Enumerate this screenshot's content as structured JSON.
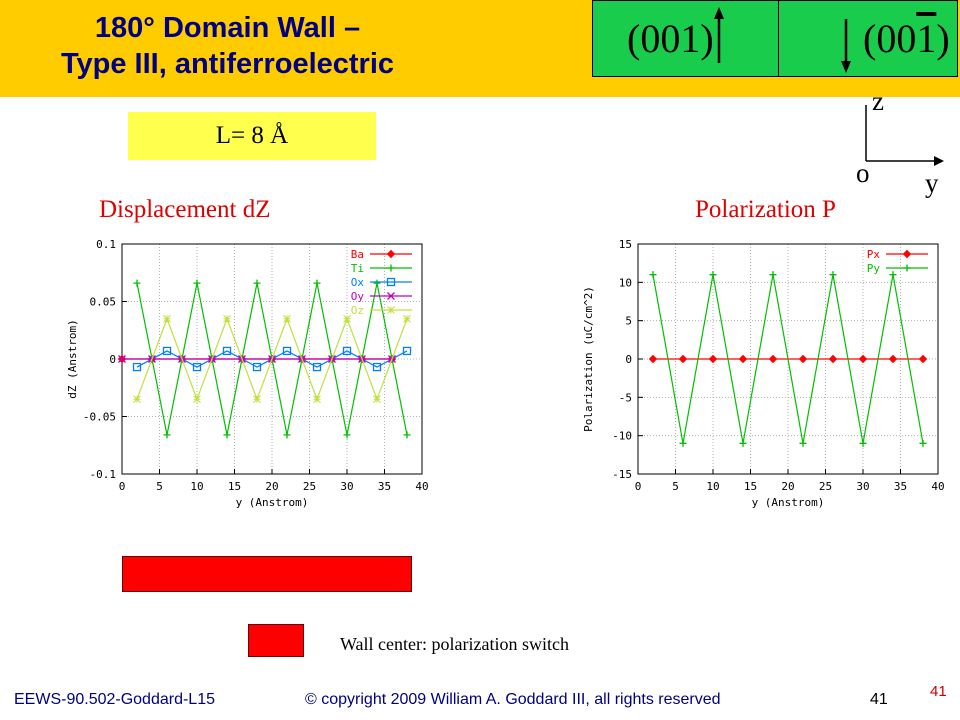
{
  "title": {
    "line1": "180° Domain Wall –",
    "line2": "Type III, antiferroelectric"
  },
  "directions": {
    "left": "(001)",
    "right": "(00",
    "right_bar": "1",
    "right_close": ")"
  },
  "length_label": "L= 8 Å",
  "axes": {
    "z": "z",
    "o": "o",
    "y": "y"
  },
  "chart_titles": {
    "left": "Displacement  dZ",
    "right": "Polarization P"
  },
  "legend": {
    "wall_center": "Wall center: polarization switch"
  },
  "footer": {
    "course": "EEWS-90.502-Goddard-L15",
    "copyright": "© copyright 2009 William A. Goddard III, all rights reserved",
    "page": "41",
    "page_red": "41"
  },
  "colors": {
    "accent": "#ffcc00",
    "title": "#000080",
    "green_box": "#19cc4c",
    "red": "#ff0000"
  },
  "chart_data": [
    {
      "type": "line",
      "title": "Displacement  dZ",
      "xlabel": "y (Anstrom)",
      "ylabel": "dZ (Anstrom)",
      "xlim": [
        0,
        40
      ],
      "ylim": [
        -0.1,
        0.1
      ],
      "xticks": [
        "0",
        "5",
        "10",
        "15",
        "20",
        "25",
        "30",
        "35",
        "40"
      ],
      "yticks": [
        "0.1",
        "0.05",
        "0",
        "-0.05",
        "-0.1"
      ],
      "grid": true,
      "legend_position": "top-right",
      "series": [
        {
          "name": "Ba",
          "color": "#ff0000",
          "marker": "diamond",
          "x": [
            0,
            4,
            8,
            12,
            16,
            20,
            24,
            28,
            32,
            36
          ],
          "y": [
            0,
            0,
            0,
            0,
            0,
            0,
            0,
            0,
            0,
            0
          ]
        },
        {
          "name": "Ti",
          "color": "#00c000",
          "marker": "plus",
          "x": [
            2,
            6,
            10,
            14,
            18,
            22,
            26,
            30,
            34,
            38
          ],
          "y": [
            0.066,
            -0.066,
            0.066,
            -0.066,
            0.066,
            -0.066,
            0.066,
            -0.066,
            0.066,
            -0.066
          ]
        },
        {
          "name": "Ox",
          "color": "#0080ff",
          "marker": "square",
          "x": [
            2,
            6,
            10,
            14,
            18,
            22,
            26,
            30,
            34,
            38
          ],
          "y": [
            -0.007,
            0.007,
            -0.007,
            0.007,
            -0.007,
            0.007,
            -0.007,
            0.007,
            -0.007,
            0.007
          ]
        },
        {
          "name": "Oy",
          "color": "#c000c0",
          "marker": "cross",
          "x": [
            0,
            4,
            8,
            12,
            16,
            20,
            24,
            28,
            32,
            36
          ],
          "y": [
            0,
            0,
            0,
            0,
            0,
            0,
            0,
            0,
            0,
            0
          ]
        },
        {
          "name": "Oz",
          "color": "#c0e040",
          "marker": "star",
          "x": [
            2,
            6,
            10,
            14,
            18,
            22,
            26,
            30,
            34,
            38
          ],
          "y": [
            -0.035,
            0.035,
            -0.035,
            0.035,
            -0.035,
            0.035,
            -0.035,
            0.035,
            -0.035,
            0.035
          ]
        }
      ]
    },
    {
      "type": "line",
      "title": "Polarization P",
      "xlabel": "y (Anstrom)",
      "ylabel": "Polarization (uC/cm^2)",
      "xlim": [
        0,
        40
      ],
      "ylim": [
        -15,
        15
      ],
      "xticks": [
        "0",
        "5",
        "10",
        "15",
        "20",
        "25",
        "30",
        "35",
        "40"
      ],
      "yticks": [
        "15",
        "10",
        "5",
        "0",
        "-5",
        "-10",
        "-15"
      ],
      "grid": true,
      "legend_position": "top-right",
      "series": [
        {
          "name": "Px",
          "color": "#ff0000",
          "marker": "diamond",
          "x": [
            2,
            6,
            10,
            14,
            18,
            22,
            26,
            30,
            34,
            38
          ],
          "y": [
            0,
            0,
            0,
            0,
            0,
            0,
            0,
            0,
            0,
            0
          ]
        },
        {
          "name": "Py",
          "color": "#00c000",
          "marker": "plus",
          "x": [
            2,
            6,
            10,
            14,
            18,
            22,
            26,
            30,
            34,
            38
          ],
          "y": [
            11,
            -11,
            11,
            -11,
            11,
            -11,
            11,
            -11,
            11,
            -11
          ]
        }
      ]
    }
  ]
}
